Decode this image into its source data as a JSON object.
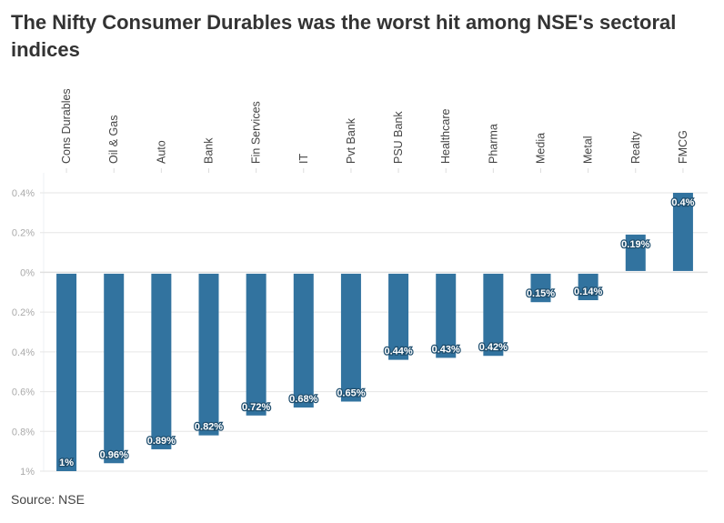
{
  "title": "The Nifty Consumer Durables was the worst hit among NSE's sectoral indices",
  "source": "Source: NSE",
  "colors": {
    "bar": "#32739f",
    "grid": "#e6e6e6"
  },
  "chart_data": {
    "type": "bar",
    "title": "The Nifty Consumer Durables was the worst hit among NSE's sectoral indices",
    "xlabel": "",
    "ylabel": "",
    "categories": [
      "Cons Durables",
      "Oil & Gas",
      "Auto",
      "Bank",
      "Fin Services",
      "IT",
      "Pvt Bank",
      "PSU Bank",
      "Healthcare",
      "Pharma",
      "Media",
      "Metal",
      "Realty",
      "FMCG"
    ],
    "values": [
      -1.0,
      -0.96,
      -0.89,
      -0.82,
      -0.72,
      -0.68,
      -0.65,
      -0.44,
      -0.43,
      -0.42,
      -0.15,
      -0.14,
      0.19,
      0.4
    ],
    "data_labels": [
      "1%",
      "0.96%",
      "0.89%",
      "0.82%",
      "0.72%",
      "0.68%",
      "0.65%",
      "0.44%",
      "0.43%",
      "0.42%",
      "0.15%",
      "0.14%",
      "0.19%",
      "0.4%"
    ],
    "ylim": [
      -1.0,
      0.4
    ],
    "yticks": [
      0.4,
      0.2,
      0,
      -0.2,
      -0.4,
      -0.6,
      -0.8,
      -1.0
    ],
    "ytick_labels": [
      "0.4%",
      "0.2%",
      "0%",
      "0.2%",
      "0.4%",
      "0.6%",
      "0.8%",
      "1%"
    ],
    "grid": true,
    "legend": "none"
  }
}
